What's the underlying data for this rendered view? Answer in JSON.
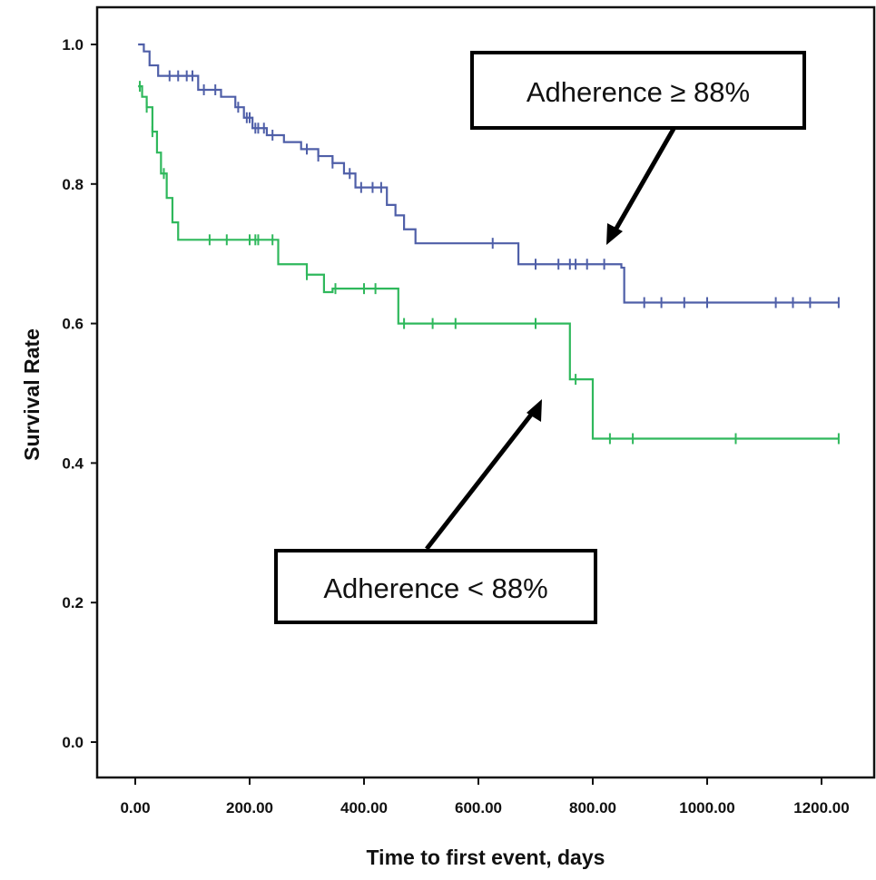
{
  "chart_data": {
    "type": "line",
    "xlabel": "Time to first event, days",
    "ylabel": "Survival Rate",
    "xlim": [
      -50,
      1280
    ],
    "ylim": [
      -0.05,
      1.05
    ],
    "x_ticks": [
      0,
      200,
      400,
      600,
      800,
      1000,
      1200
    ],
    "x_tick_labels": [
      "0.00",
      "200.00",
      "400.00",
      "600.00",
      "800.00",
      "1000.00",
      "1200.00"
    ],
    "y_ticks": [
      0.0,
      0.2,
      0.4,
      0.6,
      0.8,
      1.0
    ],
    "y_tick_labels": [
      "0.0",
      "0.2",
      "0.4",
      "0.6",
      "0.8",
      "1.0"
    ],
    "grid": false,
    "series": [
      {
        "color": "#4f5fa8",
        "x": [
          5,
          15,
          25,
          40,
          110,
          150,
          175,
          190,
          205,
          230,
          260,
          290,
          320,
          345,
          365,
          385,
          440,
          455,
          470,
          490,
          670,
          850,
          855,
          1230
        ],
        "y": [
          1.0,
          0.99,
          0.97,
          0.955,
          0.935,
          0.925,
          0.91,
          0.895,
          0.88,
          0.87,
          0.86,
          0.85,
          0.84,
          0.83,
          0.815,
          0.795,
          0.77,
          0.755,
          0.735,
          0.715,
          0.685,
          0.68,
          0.63,
          0.63
        ],
        "censored_x": [
          60,
          75,
          90,
          100,
          120,
          140,
          180,
          195,
          200,
          210,
          215,
          225,
          240,
          300,
          320,
          345,
          375,
          395,
          415,
          430,
          625,
          700,
          740,
          760,
          770,
          790,
          820,
          890,
          920,
          960,
          1000,
          1120,
          1150,
          1180,
          1230
        ]
      },
      {
        "color": "#2fb85c",
        "x": [
          5,
          12,
          20,
          30,
          38,
          45,
          55,
          65,
          75,
          250,
          300,
          330,
          345,
          460,
          720,
          760,
          785,
          800,
          1230
        ],
        "y": [
          0.94,
          0.925,
          0.91,
          0.875,
          0.845,
          0.815,
          0.78,
          0.745,
          0.72,
          0.685,
          0.67,
          0.645,
          0.65,
          0.6,
          0.6,
          0.52,
          0.52,
          0.435,
          0.435
        ],
        "censored_x": [
          8,
          20,
          30,
          50,
          130,
          160,
          200,
          210,
          215,
          240,
          300,
          350,
          400,
          420,
          470,
          520,
          560,
          700,
          770,
          830,
          870,
          1050,
          1230
        ]
      }
    ],
    "annotations": [
      {
        "text": "Adherence ≥ 88%"
      },
      {
        "text": "Adherence < 88%"
      }
    ]
  }
}
